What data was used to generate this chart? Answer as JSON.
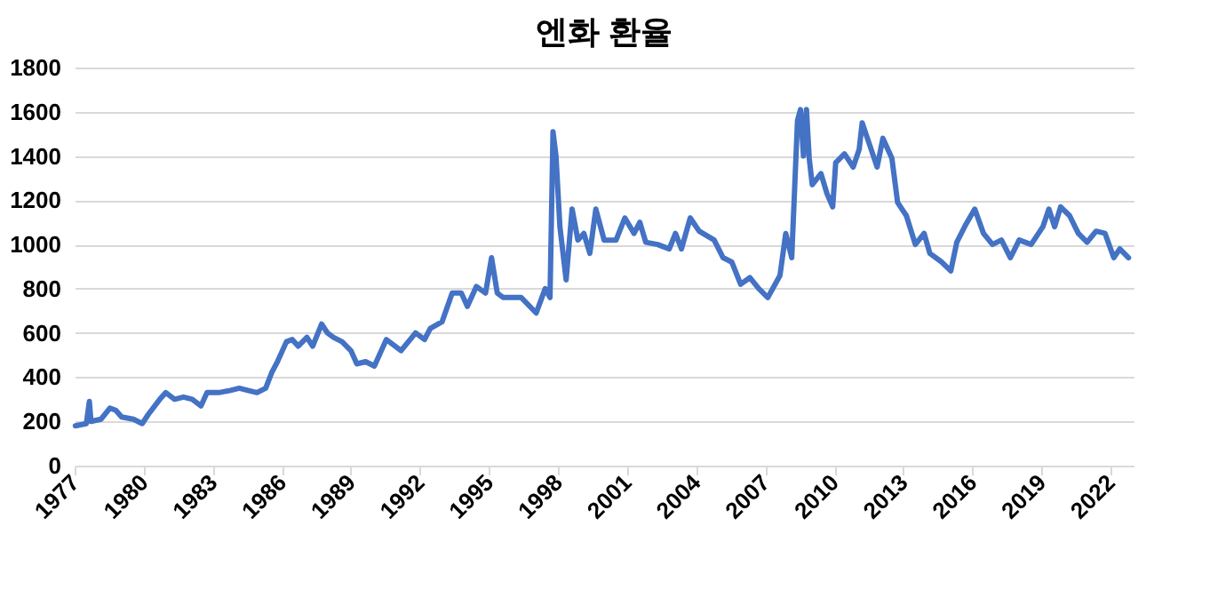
{
  "chart_data": {
    "type": "line",
    "title": "엔화 환율",
    "x": [
      1977.03,
      1977.51,
      1977.64,
      1977.71,
      1978.15,
      1978.53,
      1978.79,
      1979.04,
      1979.55,
      1979.94,
      1980.19,
      1980.7,
      1980.96,
      1981.34,
      1981.73,
      1982.11,
      1982.49,
      1982.75,
      1983.26,
      1983.77,
      1984.15,
      1984.53,
      1984.92,
      1985.3,
      1985.56,
      1985.81,
      1986.2,
      1986.45,
      1986.71,
      1987.09,
      1987.34,
      1987.73,
      1987.98,
      1988.24,
      1988.62,
      1989.0,
      1989.26,
      1989.64,
      1990.02,
      1990.54,
      1991.18,
      1991.81,
      1992.2,
      1992.45,
      1992.96,
      1993.4,
      1993.8,
      1994.06,
      1994.45,
      1994.85,
      1995.11,
      1995.36,
      1995.62,
      1996.4,
      1997.05,
      1997.44,
      1997.65,
      1997.78,
      1997.91,
      1998.08,
      1998.35,
      1998.61,
      1998.86,
      1999.12,
      1999.38,
      1999.64,
      2000.0,
      2000.52,
      2000.9,
      2001.3,
      2001.55,
      2001.81,
      2002.32,
      2002.83,
      2003.1,
      2003.36,
      2003.74,
      2004.13,
      2004.78,
      2005.17,
      2005.55,
      2005.93,
      2006.33,
      2006.72,
      2007.11,
      2007.64,
      2007.89,
      2008.15,
      2008.4,
      2008.53,
      2008.66,
      2008.79,
      2008.91,
      2009.04,
      2009.42,
      2009.68,
      2009.93,
      2010.06,
      2010.44,
      2010.82,
      2011.08,
      2011.21,
      2011.6,
      2011.86,
      2012.11,
      2012.5,
      2012.75,
      2013.13,
      2013.52,
      2013.9,
      2014.15,
      2014.67,
      2015.06,
      2015.32,
      2015.71,
      2016.1,
      2016.48,
      2016.87,
      2017.26,
      2017.65,
      2018.03,
      2018.55,
      2019.06,
      2019.32,
      2019.57,
      2019.83,
      2020.22,
      2020.6,
      2020.98,
      2021.37,
      2021.76,
      2022.14,
      2022.4,
      2022.78
    ],
    "series": [
      {
        "color": "#4472c4",
        "values": [
          180,
          190,
          290,
          200,
          210,
          260,
          250,
          220,
          210,
          190,
          230,
          300,
          330,
          300,
          310,
          300,
          270,
          330,
          330,
          340,
          350,
          340,
          330,
          350,
          420,
          470,
          560,
          570,
          540,
          580,
          540,
          640,
          600,
          580,
          560,
          520,
          460,
          470,
          450,
          570,
          520,
          600,
          570,
          620,
          650,
          780,
          780,
          720,
          810,
          780,
          940,
          780,
          760,
          760,
          690,
          800,
          760,
          1510,
          1400,
          1080,
          840,
          1160,
          1020,
          1050,
          960,
          1160,
          1020,
          1020,
          1120,
          1050,
          1100,
          1010,
          1000,
          980,
          1050,
          980,
          1120,
          1060,
          1020,
          940,
          920,
          820,
          850,
          800,
          760,
          860,
          1050,
          940,
          1560,
          1610,
          1400,
          1610,
          1390,
          1270,
          1320,
          1230,
          1170,
          1370,
          1410,
          1350,
          1430,
          1550,
          1430,
          1350,
          1480,
          1390,
          1190,
          1130,
          1000,
          1050,
          960,
          920,
          880,
          1010,
          1090,
          1160,
          1050,
          1000,
          1020,
          940,
          1020,
          1000,
          1080,
          1160,
          1080,
          1170,
          1130,
          1050,
          1010,
          1060,
          1050,
          940,
          980,
          940
        ]
      }
    ],
    "xlim": [
      1977,
      2023
    ],
    "xticks": [
      1977,
      1980,
      1983,
      1986,
      1989,
      1992,
      1995,
      1998,
      2001,
      2004,
      2007,
      2010,
      2013,
      2016,
      2019,
      2022
    ],
    "ylim": [
      0,
      1800
    ],
    "yticks": [
      0,
      200,
      400,
      600,
      800,
      1000,
      1200,
      1400,
      1600,
      1800
    ],
    "grid": "y",
    "legend": false,
    "marker": "none",
    "line_style": "solid"
  }
}
